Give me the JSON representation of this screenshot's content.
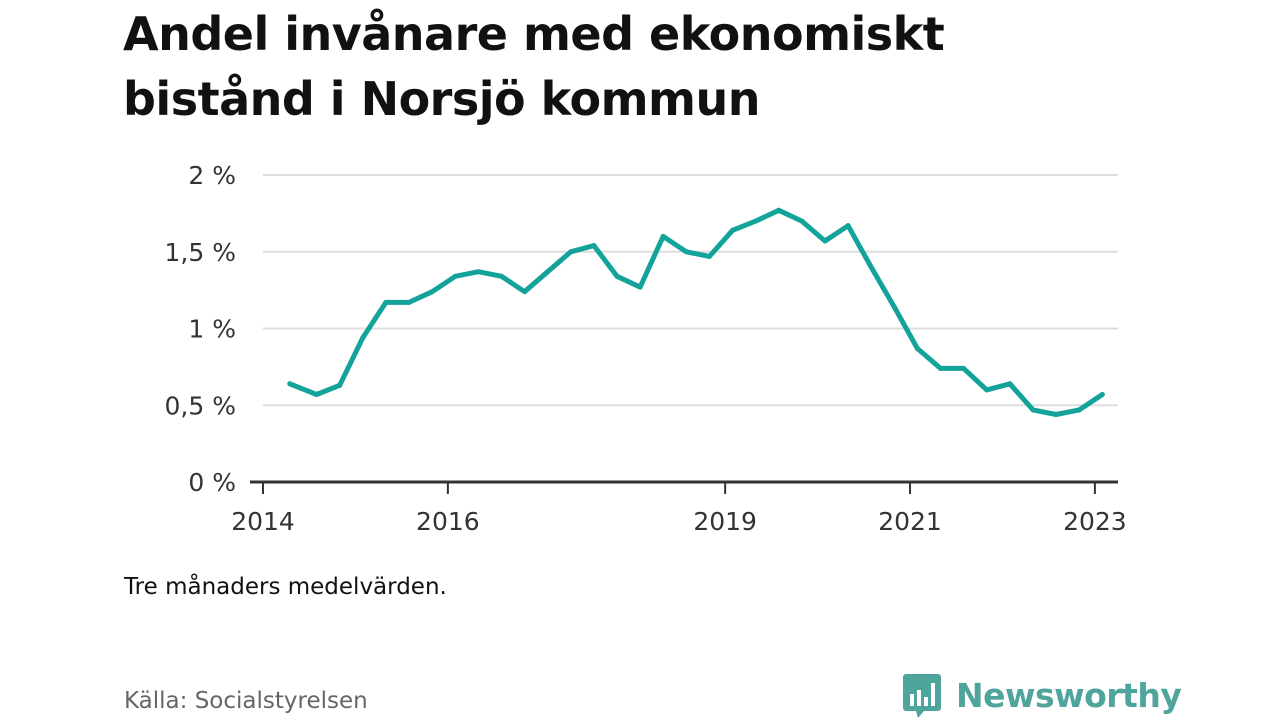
{
  "title_lines": [
    "Andel invånare med ekonomiskt",
    "bistånd i Norsjö kommun"
  ],
  "note": "Tre månaders medelvärden.",
  "source": "Källa: Socialstyrelsen",
  "brand": {
    "name": "Newsworthy",
    "icon": "newsworthy-logo-icon",
    "color": "#4fa59b"
  },
  "colors": {
    "line": "#14a39a",
    "grid": "#dddddd",
    "axis": "#333333"
  },
  "chart_data": {
    "type": "line",
    "title": "Andel invånare med ekonomiskt bistånd i Norsjö kommun",
    "xlabel": "",
    "ylabel": "",
    "xlim": [
      2014,
      2023.25
    ],
    "ylim": [
      0,
      2
    ],
    "x_ticks": [
      {
        "value": 2014,
        "label": "2014"
      },
      {
        "value": 2016,
        "label": "2016"
      },
      {
        "value": 2019,
        "label": "2019"
      },
      {
        "value": 2021,
        "label": "2021"
      },
      {
        "value": 2023,
        "label": "2023"
      }
    ],
    "y_ticks": [
      {
        "value": 0,
        "label": "0 %"
      },
      {
        "value": 0.5,
        "label": "0,5 %"
      },
      {
        "value": 1,
        "label": "1 %"
      },
      {
        "value": 1.5,
        "label": "1,5 %"
      },
      {
        "value": 2,
        "label": "2 %"
      }
    ],
    "grid": true,
    "series": [
      {
        "x": [
          2014.29,
          2014.58,
          2014.83,
          2015.08,
          2015.33,
          2015.58,
          2015.83,
          2016.08,
          2016.33,
          2016.58,
          2016.83,
          2017.08,
          2017.33,
          2017.58,
          2017.83,
          2018.08,
          2018.33,
          2018.58,
          2018.83,
          2019.08,
          2019.33,
          2019.58,
          2019.83,
          2020.08,
          2020.33,
          2020.58,
          2020.83,
          2021.08,
          2021.33,
          2021.58,
          2021.83,
          2022.08,
          2022.33,
          2022.58,
          2022.83,
          2023.08
        ],
        "values": [
          0.64,
          0.57,
          0.63,
          0.94,
          1.17,
          1.17,
          1.24,
          1.34,
          1.37,
          1.34,
          1.24,
          1.37,
          1.5,
          1.54,
          1.34,
          1.27,
          1.6,
          1.5,
          1.47,
          1.64,
          1.7,
          1.77,
          1.7,
          1.57,
          1.67,
          1.4,
          1.14,
          0.87,
          0.74,
          0.74,
          0.6,
          0.64,
          0.47,
          0.44,
          0.47,
          0.57
        ]
      }
    ]
  }
}
